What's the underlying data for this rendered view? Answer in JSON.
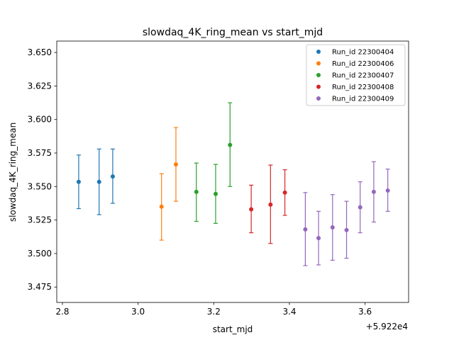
{
  "chart_data": {
    "type": "scatter",
    "title": "slowdaq_4K_ring_mean vs start_mjd",
    "xlabel": "start_mjd",
    "ylabel": "slowdaq_4K_ring_mean",
    "offset_label": "+5.922e4",
    "xlim": [
      2.785,
      3.715
    ],
    "ylim": [
      3.4635,
      3.6585
    ],
    "x_ticks": [
      2.8,
      3.0,
      3.2,
      3.4,
      3.6
    ],
    "x_tick_labels": [
      "2.8",
      "3.0",
      "3.2",
      "3.4",
      "3.6"
    ],
    "y_ticks": [
      3.475,
      3.5,
      3.525,
      3.55,
      3.575,
      3.6,
      3.625,
      3.65
    ],
    "y_tick_labels": [
      "3.475",
      "3.500",
      "3.525",
      "3.550",
      "3.575",
      "3.600",
      "3.625",
      "3.650"
    ],
    "grid": false,
    "legend_position": "top-right",
    "series": [
      {
        "name": "Run_id 22300404",
        "color": "#1f77b4",
        "points": [
          {
            "x": 2.843,
            "y": 3.5535,
            "lo": 3.5335,
            "hi": 3.5735
          },
          {
            "x": 2.897,
            "y": 3.5535,
            "lo": 3.529,
            "hi": 3.578
          },
          {
            "x": 2.933,
            "y": 3.5575,
            "lo": 3.5375,
            "hi": 3.578
          }
        ]
      },
      {
        "name": "Run_id 22300406",
        "color": "#ff7f0e",
        "points": [
          {
            "x": 3.062,
            "y": 3.535,
            "lo": 3.51,
            "hi": 3.5595
          },
          {
            "x": 3.1,
            "y": 3.5665,
            "lo": 3.539,
            "hi": 3.594
          }
        ]
      },
      {
        "name": "Run_id 22300407",
        "color": "#2ca02c",
        "points": [
          {
            "x": 3.154,
            "y": 3.546,
            "lo": 3.524,
            "hi": 3.5675
          },
          {
            "x": 3.205,
            "y": 3.5445,
            "lo": 3.5225,
            "hi": 3.5665
          },
          {
            "x": 3.243,
            "y": 3.581,
            "lo": 3.55,
            "hi": 3.6125
          }
        ]
      },
      {
        "name": "Run_id 22300408",
        "color": "#d62728",
        "points": [
          {
            "x": 3.299,
            "y": 3.533,
            "lo": 3.5155,
            "hi": 3.551
          },
          {
            "x": 3.35,
            "y": 3.5365,
            "lo": 3.5075,
            "hi": 3.566
          },
          {
            "x": 3.388,
            "y": 3.5455,
            "lo": 3.5285,
            "hi": 3.5625
          }
        ]
      },
      {
        "name": "Run_id 22300409",
        "color": "#9467bd",
        "points": [
          {
            "x": 3.442,
            "y": 3.518,
            "lo": 3.491,
            "hi": 3.5455
          },
          {
            "x": 3.477,
            "y": 3.5115,
            "lo": 3.4915,
            "hi": 3.5315
          },
          {
            "x": 3.514,
            "y": 3.5195,
            "lo": 3.495,
            "hi": 3.544
          },
          {
            "x": 3.551,
            "y": 3.5175,
            "lo": 3.4965,
            "hi": 3.539
          },
          {
            "x": 3.587,
            "y": 3.5345,
            "lo": 3.5155,
            "hi": 3.5535
          },
          {
            "x": 3.623,
            "y": 3.546,
            "lo": 3.5235,
            "hi": 3.5685
          },
          {
            "x": 3.66,
            "y": 3.547,
            "lo": 3.5315,
            "hi": 3.563
          }
        ]
      }
    ]
  }
}
